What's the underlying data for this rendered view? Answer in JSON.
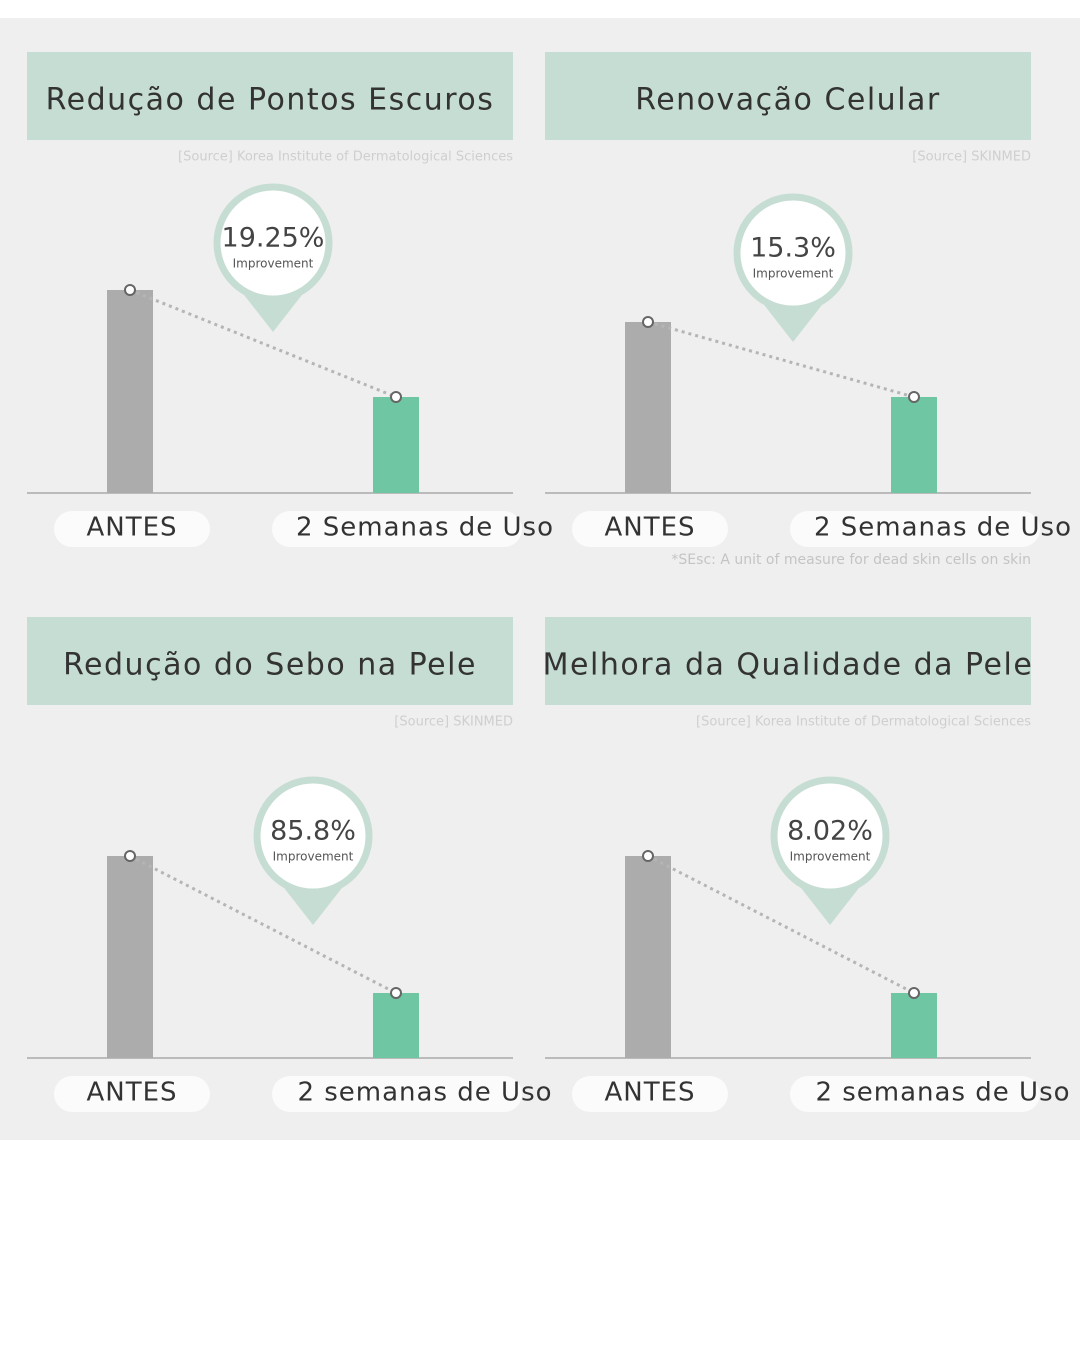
{
  "chart_data": [
    {
      "type": "bar",
      "title": "Redução de Pontos Escuros",
      "source": "[Source] Korea Institute of Dermatological Sciences",
      "categories": [
        "ANTES",
        "2 Semanas de Uso"
      ],
      "values": [
        203,
        96
      ],
      "colors": [
        "#acacac",
        "#6ec6a2"
      ],
      "callout": {
        "label": "19.25%",
        "caption": "Improvement"
      }
    },
    {
      "type": "bar",
      "title": "Renovação Celular",
      "source": "[Source] SKINMED",
      "categories": [
        "ANTES",
        "2 Semanas de Uso"
      ],
      "values": [
        171,
        96
      ],
      "colors": [
        "#acacac",
        "#6ec6a2"
      ],
      "callout": {
        "label": "15.3%",
        "caption": "Improvement"
      },
      "footnote": "*SEsc: A unit of measure for dead skin cells on skin"
    },
    {
      "type": "bar",
      "title": "Redução do Sebo na Pele",
      "source": "[Source] SKINMED",
      "categories": [
        "ANTES",
        "2 semanas de Uso"
      ],
      "values": [
        202,
        65
      ],
      "colors": [
        "#acacac",
        "#6ec6a2"
      ],
      "callout": {
        "label": "85.8%",
        "caption": "Improvement"
      }
    },
    {
      "type": "bar",
      "title": "Melhora da Qualidade da Pele",
      "source": "[Source] Korea Institute of Dermatological Sciences",
      "categories": [
        "ANTES",
        "2 semanas de Uso"
      ],
      "values": [
        202,
        65
      ],
      "colors": [
        "#acacac",
        "#6ec6a2"
      ],
      "callout": {
        "label": "8.02%",
        "caption": "Improvement"
      }
    }
  ]
}
